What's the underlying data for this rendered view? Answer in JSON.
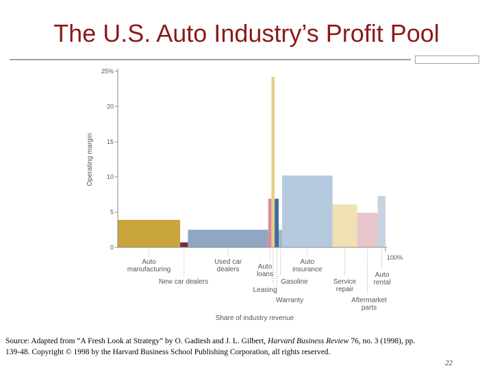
{
  "slide": {
    "title": "The U.S. Auto Industry’s Profit Pool",
    "page_number": "22",
    "colors": {
      "title": "#8b1a1a",
      "rule": "#9aa3ad"
    }
  },
  "source": {
    "prefix": "Source: Adapted from “A Fresh Look at Strategy” by O. Gadiesh and J. L. Gilbert, ",
    "journal": "Harvard Business Review",
    "suffix": " 76, no. 3 (1998), pp. 139-48. Copyright © 1998 by the Harvard Business School Publishing Corporation, all rights reserved."
  },
  "chart_data": {
    "type": "bar",
    "subtype": "variable-width profit pool (marimekko)",
    "ylabel": "Operating margin",
    "xlabel": "Share of industry revenue",
    "ylim": [
      0,
      25
    ],
    "y_ticks": [
      "0",
      "5",
      "10",
      "15",
      "20",
      "25%"
    ],
    "x_end_label": "100%",
    "grid": false,
    "segments": [
      {
        "label": "Auto manufacturing",
        "share": 23.3,
        "margin": 3.9,
        "color": "#c9a43b"
      },
      {
        "label": "New car dealers",
        "share": 2.9,
        "margin": 0.7,
        "color": "#7a2a3a"
      },
      {
        "label": "Used car dealers",
        "share": 30.0,
        "margin": 2.5,
        "color": "#8fa7c2"
      },
      {
        "label": "Auto loans",
        "share": 1.2,
        "margin": 6.9,
        "color": "#d9899a"
      },
      {
        "label": "Leasing",
        "share": 1.2,
        "margin": 24.2,
        "color": "#e8cd8a"
      },
      {
        "label": "Warranty",
        "share": 1.5,
        "margin": 6.9,
        "color": "#3f6e96"
      },
      {
        "label": "Gasoline",
        "share": 1.3,
        "margin": 2.5,
        "color": "#9fb7cf"
      },
      {
        "label": "Auto insurance",
        "share": 18.8,
        "margin": 10.2,
        "color": "#b5c9df"
      },
      {
        "label": "Service repair",
        "share": 9.2,
        "margin": 6.1,
        "color": "#efe1b4"
      },
      {
        "label": "Aftermarket parts",
        "share": 7.7,
        "margin": 4.9,
        "color": "#e8c4cc"
      },
      {
        "label": "Auto rental",
        "share": 2.9,
        "margin": 7.3,
        "color": "#c5d3e2"
      }
    ]
  }
}
